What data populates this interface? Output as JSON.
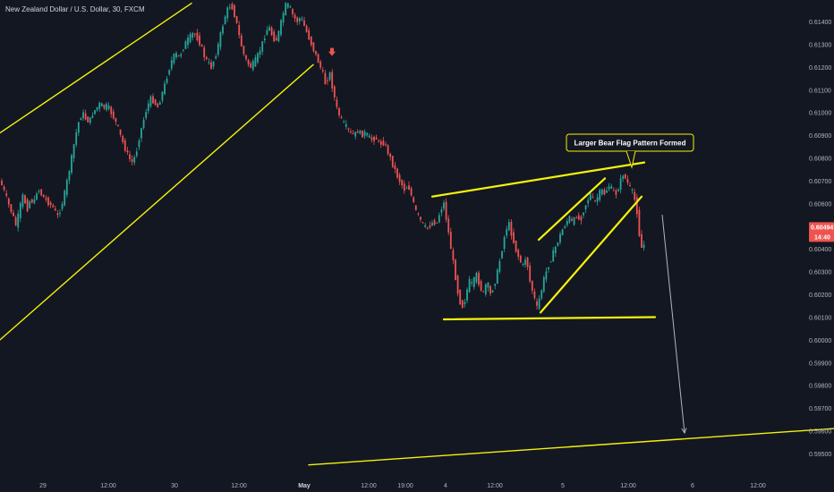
{
  "symbol_title": "New Zealand Dollar / U.S. Dollar, 30, FXCM",
  "colors": {
    "background": "#131722",
    "up": "#26a69a",
    "down": "#ef5350",
    "trendline": "#f5f20a",
    "annotation_border": "#f5f20a",
    "arrow": "#b2b5be",
    "axis_text": "#b2b5be"
  },
  "chart_data": {
    "type": "candlestick",
    "symbol": "NZDUSD",
    "timeframe": "30",
    "source": "FXCM",
    "y_axis": {
      "ticks": [
        "0.61400",
        "0.61300",
        "0.61200",
        "0.61100",
        "0.61000",
        "0.60900",
        "0.60800",
        "0.60700",
        "0.60600",
        "0.60500",
        "0.60400",
        "0.60300",
        "0.60200",
        "0.60100",
        "0.60000",
        "0.59900",
        "0.59800",
        "0.59700",
        "0.59600",
        "0.59500"
      ],
      "range": [
        0.5945,
        0.615
      ]
    },
    "x_axis": {
      "ticks": [
        {
          "label": "29",
          "bold": false
        },
        {
          "label": "12:00",
          "bold": false
        },
        {
          "label": "30",
          "bold": false
        },
        {
          "label": "12:00",
          "bold": false
        },
        {
          "label": "May",
          "bold": true
        },
        {
          "label": "12:00",
          "bold": false
        },
        {
          "label": "19:00",
          "bold": false
        },
        {
          "label": "4",
          "bold": false
        },
        {
          "label": "12:00",
          "bold": false
        },
        {
          "label": "5",
          "bold": false
        },
        {
          "label": "12:00",
          "bold": false
        },
        {
          "label": "6",
          "bold": false
        },
        {
          "label": "12:00",
          "bold": false
        }
      ]
    },
    "last_price": "0.60494",
    "countdown": "14:40",
    "annotation": "Larger Bear Flag Pattern Formed",
    "price_path": [
      [
        0,
        0.607
      ],
      [
        5,
        0.6065
      ],
      [
        10,
        0.6059
      ],
      [
        14,
        0.6055
      ],
      [
        18,
        0.605
      ],
      [
        22,
        0.6058
      ],
      [
        26,
        0.6064
      ],
      [
        30,
        0.6057
      ],
      [
        34,
        0.6062
      ],
      [
        38,
        0.606
      ],
      [
        42,
        0.6067
      ],
      [
        46,
        0.6064
      ],
      [
        50,
        0.6062
      ],
      [
        55,
        0.606
      ],
      [
        60,
        0.6058
      ],
      [
        64,
        0.6054
      ],
      [
        68,
        0.6058
      ],
      [
        72,
        0.6064
      ],
      [
        76,
        0.6072
      ],
      [
        80,
        0.608
      ],
      [
        84,
        0.6089
      ],
      [
        88,
        0.6096
      ],
      [
        92,
        0.61
      ],
      [
        96,
        0.6097
      ],
      [
        100,
        0.6096
      ],
      [
        104,
        0.61
      ],
      [
        108,
        0.6102
      ],
      [
        112,
        0.6104
      ],
      [
        116,
        0.6102
      ],
      [
        120,
        0.6103
      ],
      [
        124,
        0.61
      ],
      [
        128,
        0.6097
      ],
      [
        132,
        0.6093
      ],
      [
        136,
        0.6088
      ],
      [
        140,
        0.6084
      ],
      [
        144,
        0.608
      ],
      [
        148,
        0.6078
      ],
      [
        152,
        0.6082
      ],
      [
        156,
        0.609
      ],
      [
        160,
        0.6096
      ],
      [
        164,
        0.6102
      ],
      [
        168,
        0.6106
      ],
      [
        172,
        0.6105
      ],
      [
        176,
        0.6102
      ],
      [
        180,
        0.6107
      ],
      [
        184,
        0.6112
      ],
      [
        188,
        0.6118
      ],
      [
        192,
        0.6123
      ],
      [
        196,
        0.6126
      ],
      [
        200,
        0.6124
      ],
      [
        204,
        0.6128
      ],
      [
        208,
        0.6131
      ],
      [
        212,
        0.6133
      ],
      [
        216,
        0.6135
      ],
      [
        220,
        0.6133
      ],
      [
        224,
        0.613
      ],
      [
        228,
        0.6125
      ],
      [
        232,
        0.6122
      ],
      [
        236,
        0.612
      ],
      [
        240,
        0.6124
      ],
      [
        244,
        0.613
      ],
      [
        248,
        0.6137
      ],
      [
        252,
        0.6143
      ],
      [
        256,
        0.6147
      ],
      [
        260,
        0.6146
      ],
      [
        264,
        0.614
      ],
      [
        268,
        0.6132
      ],
      [
        272,
        0.6126
      ],
      [
        276,
        0.6122
      ],
      [
        280,
        0.612
      ],
      [
        284,
        0.6122
      ],
      [
        288,
        0.6125
      ],
      [
        292,
        0.6129
      ],
      [
        296,
        0.6134
      ],
      [
        300,
        0.6138
      ],
      [
        304,
        0.6134
      ],
      [
        308,
        0.6131
      ],
      [
        312,
        0.6136
      ],
      [
        316,
        0.6143
      ],
      [
        320,
        0.6148
      ],
      [
        324,
        0.6146
      ],
      [
        328,
        0.6142
      ],
      [
        332,
        0.614
      ],
      [
        336,
        0.6142
      ],
      [
        340,
        0.6138
      ],
      [
        344,
        0.6134
      ],
      [
        348,
        0.613
      ],
      [
        352,
        0.6126
      ],
      [
        356,
        0.6122
      ],
      [
        360,
        0.6118
      ],
      [
        364,
        0.6112
      ],
      [
        368,
        0.6118
      ],
      [
        372,
        0.611
      ],
      [
        376,
        0.6102
      ],
      [
        380,
        0.6098
      ],
      [
        384,
        0.6095
      ],
      [
        388,
        0.6093
      ],
      [
        392,
        0.6091
      ],
      [
        396,
        0.609
      ],
      [
        400,
        0.6092
      ],
      [
        404,
        0.609
      ],
      [
        408,
        0.6091
      ],
      [
        412,
        0.6089
      ],
      [
        416,
        0.6088
      ],
      [
        420,
        0.6089
      ],
      [
        424,
        0.6086
      ],
      [
        428,
        0.6087
      ],
      [
        432,
        0.6084
      ],
      [
        436,
        0.608
      ],
      [
        440,
        0.6076
      ],
      [
        444,
        0.6072
      ],
      [
        448,
        0.6069
      ],
      [
        452,
        0.6066
      ],
      [
        456,
        0.6068
      ],
      [
        460,
        0.6063
      ],
      [
        464,
        0.6057
      ],
      [
        468,
        0.6054
      ],
      [
        472,
        0.6051
      ],
      [
        476,
        0.6049
      ],
      [
        480,
        0.605
      ],
      [
        484,
        0.6052
      ],
      [
        488,
        0.6051
      ],
      [
        492,
        0.6057
      ],
      [
        496,
        0.606
      ],
      [
        500,
        0.605
      ],
      [
        504,
        0.604
      ],
      [
        508,
        0.603
      ],
      [
        512,
        0.602
      ],
      [
        516,
        0.6014
      ],
      [
        520,
        0.6018
      ],
      [
        524,
        0.6026
      ],
      [
        528,
        0.6024
      ],
      [
        532,
        0.6029
      ],
      [
        536,
        0.6024
      ],
      [
        540,
        0.602
      ],
      [
        544,
        0.6026
      ],
      [
        548,
        0.602
      ],
      [
        552,
        0.6024
      ],
      [
        556,
        0.603
      ],
      [
        560,
        0.6038
      ],
      [
        564,
        0.6046
      ],
      [
        568,
        0.6052
      ],
      [
        572,
        0.6046
      ],
      [
        576,
        0.604
      ],
      [
        580,
        0.6036
      ],
      [
        584,
        0.6032
      ],
      [
        588,
        0.6037
      ],
      [
        592,
        0.6026
      ],
      [
        596,
        0.602
      ],
      [
        600,
        0.6014
      ],
      [
        604,
        0.602
      ],
      [
        608,
        0.6027
      ],
      [
        612,
        0.6032
      ],
      [
        616,
        0.6036
      ],
      [
        620,
        0.604
      ],
      [
        624,
        0.6044
      ],
      [
        628,
        0.6048
      ],
      [
        632,
        0.6051
      ],
      [
        636,
        0.6054
      ],
      [
        640,
        0.6051
      ],
      [
        644,
        0.6055
      ],
      [
        648,
        0.6052
      ],
      [
        652,
        0.6057
      ],
      [
        656,
        0.6061
      ],
      [
        660,
        0.6064
      ],
      [
        664,
        0.606
      ],
      [
        668,
        0.6063
      ],
      [
        672,
        0.6066
      ],
      [
        676,
        0.6064
      ],
      [
        680,
        0.6068
      ],
      [
        684,
        0.6066
      ],
      [
        688,
        0.6064
      ],
      [
        692,
        0.6068
      ],
      [
        696,
        0.6073
      ],
      [
        700,
        0.607
      ],
      [
        704,
        0.6067
      ],
      [
        708,
        0.6064
      ],
      [
        712,
        0.6056
      ],
      [
        716,
        0.604
      ],
      [
        720,
        0.6042
      ],
      [
        724,
        0.6049
      ]
    ],
    "drawings": [
      {
        "name": "upper-channel-line",
        "type": "trendline",
        "points": [
          [
            0,
            0.6091
          ],
          [
            214,
            0.6148
          ]
        ]
      },
      {
        "name": "lower-channel-line",
        "type": "trendline",
        "points": [
          [
            0,
            0.6
          ],
          [
            350,
            0.6121
          ]
        ]
      },
      {
        "name": "flag-top-line",
        "type": "trendline",
        "points": [
          [
            483,
            0.6063
          ],
          [
            720,
            0.6078
          ]
        ]
      },
      {
        "name": "flag-bottom-line",
        "type": "trendline",
        "points": [
          [
            496,
            0.6009
          ],
          [
            732,
            0.601
          ]
        ]
      },
      {
        "name": "inner-channel-top",
        "type": "trendline",
        "points": [
          [
            602,
            0.6044
          ],
          [
            676,
            0.6071
          ]
        ]
      },
      {
        "name": "inner-channel-bottom",
        "type": "trendline",
        "points": [
          [
            604,
            0.6012
          ],
          [
            717,
            0.6063
          ]
        ]
      },
      {
        "name": "target-support-line",
        "type": "trendline",
        "points": [
          [
            345,
            0.5945
          ],
          [
            932,
            0.5961
          ]
        ]
      },
      {
        "name": "projection-arrow",
        "type": "arrow",
        "points": [
          [
            740,
            0.6055
          ],
          [
            765,
            0.5959
          ]
        ]
      }
    ]
  }
}
